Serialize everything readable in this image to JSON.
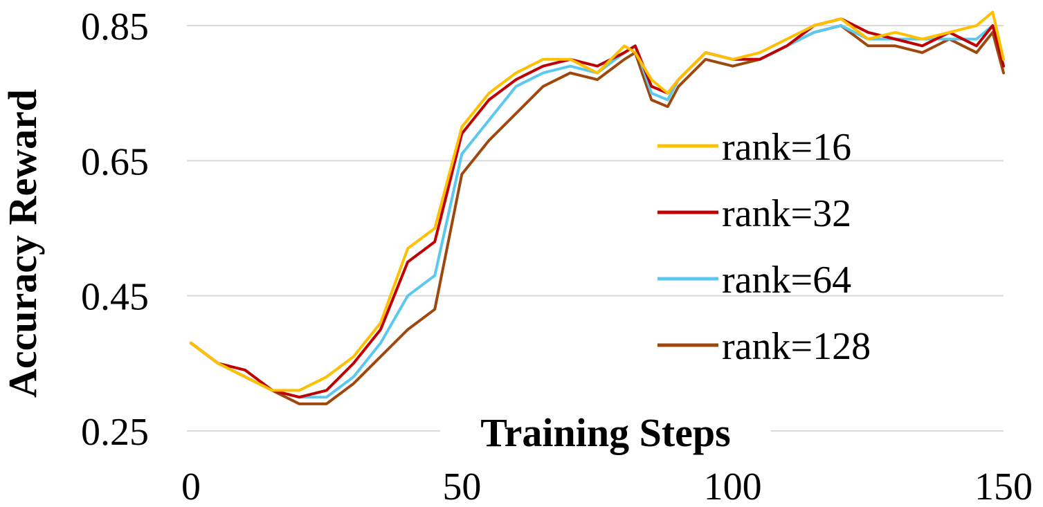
{
  "chart_data": {
    "type": "line",
    "title": "",
    "xlabel": "Training Steps",
    "ylabel": "Accuracy Reward",
    "xlim": [
      0,
      150
    ],
    "ylim": [
      0.25,
      0.85
    ],
    "xticks": [
      "0",
      "50",
      "100",
      "150"
    ],
    "yticks": [
      "0.25",
      "0.45",
      "0.65",
      "0.85"
    ],
    "grid": "horizontal",
    "legend_position": "right",
    "x": [
      0,
      5,
      10,
      15,
      20,
      25,
      30,
      35,
      40,
      45,
      50,
      55,
      60,
      65,
      70,
      75,
      80,
      82,
      85,
      88,
      90,
      95,
      100,
      105,
      110,
      115,
      120,
      125,
      130,
      135,
      140,
      145,
      148,
      150
    ],
    "series": [
      {
        "name": "rank=16",
        "color": "#FFC000",
        "values": [
          0.38,
          0.35,
          0.33,
          0.31,
          0.31,
          0.33,
          0.36,
          0.41,
          0.52,
          0.55,
          0.7,
          0.75,
          0.78,
          0.8,
          0.8,
          0.78,
          0.82,
          0.81,
          0.77,
          0.75,
          0.77,
          0.81,
          0.8,
          0.81,
          0.83,
          0.85,
          0.86,
          0.83,
          0.84,
          0.83,
          0.84,
          0.85,
          0.87,
          0.8
        ]
      },
      {
        "name": "rank=32",
        "color": "#C00000",
        "values": [
          0.38,
          0.35,
          0.34,
          0.31,
          0.3,
          0.31,
          0.35,
          0.4,
          0.5,
          0.53,
          0.69,
          0.74,
          0.77,
          0.79,
          0.8,
          0.79,
          0.81,
          0.82,
          0.76,
          0.75,
          0.77,
          0.81,
          0.8,
          0.8,
          0.82,
          0.85,
          0.86,
          0.84,
          0.83,
          0.82,
          0.84,
          0.82,
          0.85,
          0.79
        ]
      },
      {
        "name": "rank=64",
        "color": "#5BC8F0",
        "values": [
          0.38,
          0.35,
          0.33,
          0.31,
          0.3,
          0.3,
          0.33,
          0.38,
          0.45,
          0.48,
          0.66,
          0.71,
          0.76,
          0.78,
          0.79,
          0.78,
          0.81,
          0.82,
          0.75,
          0.74,
          0.77,
          0.81,
          0.8,
          0.8,
          0.82,
          0.84,
          0.85,
          0.83,
          0.83,
          0.83,
          0.83,
          0.83,
          0.85,
          0.79
        ]
      },
      {
        "name": "rank=128",
        "color": "#9E480E",
        "values": [
          0.38,
          0.35,
          0.33,
          0.31,
          0.29,
          0.29,
          0.32,
          0.36,
          0.4,
          0.43,
          0.63,
          0.68,
          0.72,
          0.76,
          0.78,
          0.77,
          0.8,
          0.81,
          0.74,
          0.73,
          0.76,
          0.8,
          0.79,
          0.8,
          0.82,
          0.84,
          0.85,
          0.82,
          0.82,
          0.81,
          0.83,
          0.81,
          0.84,
          0.78
        ]
      }
    ]
  }
}
